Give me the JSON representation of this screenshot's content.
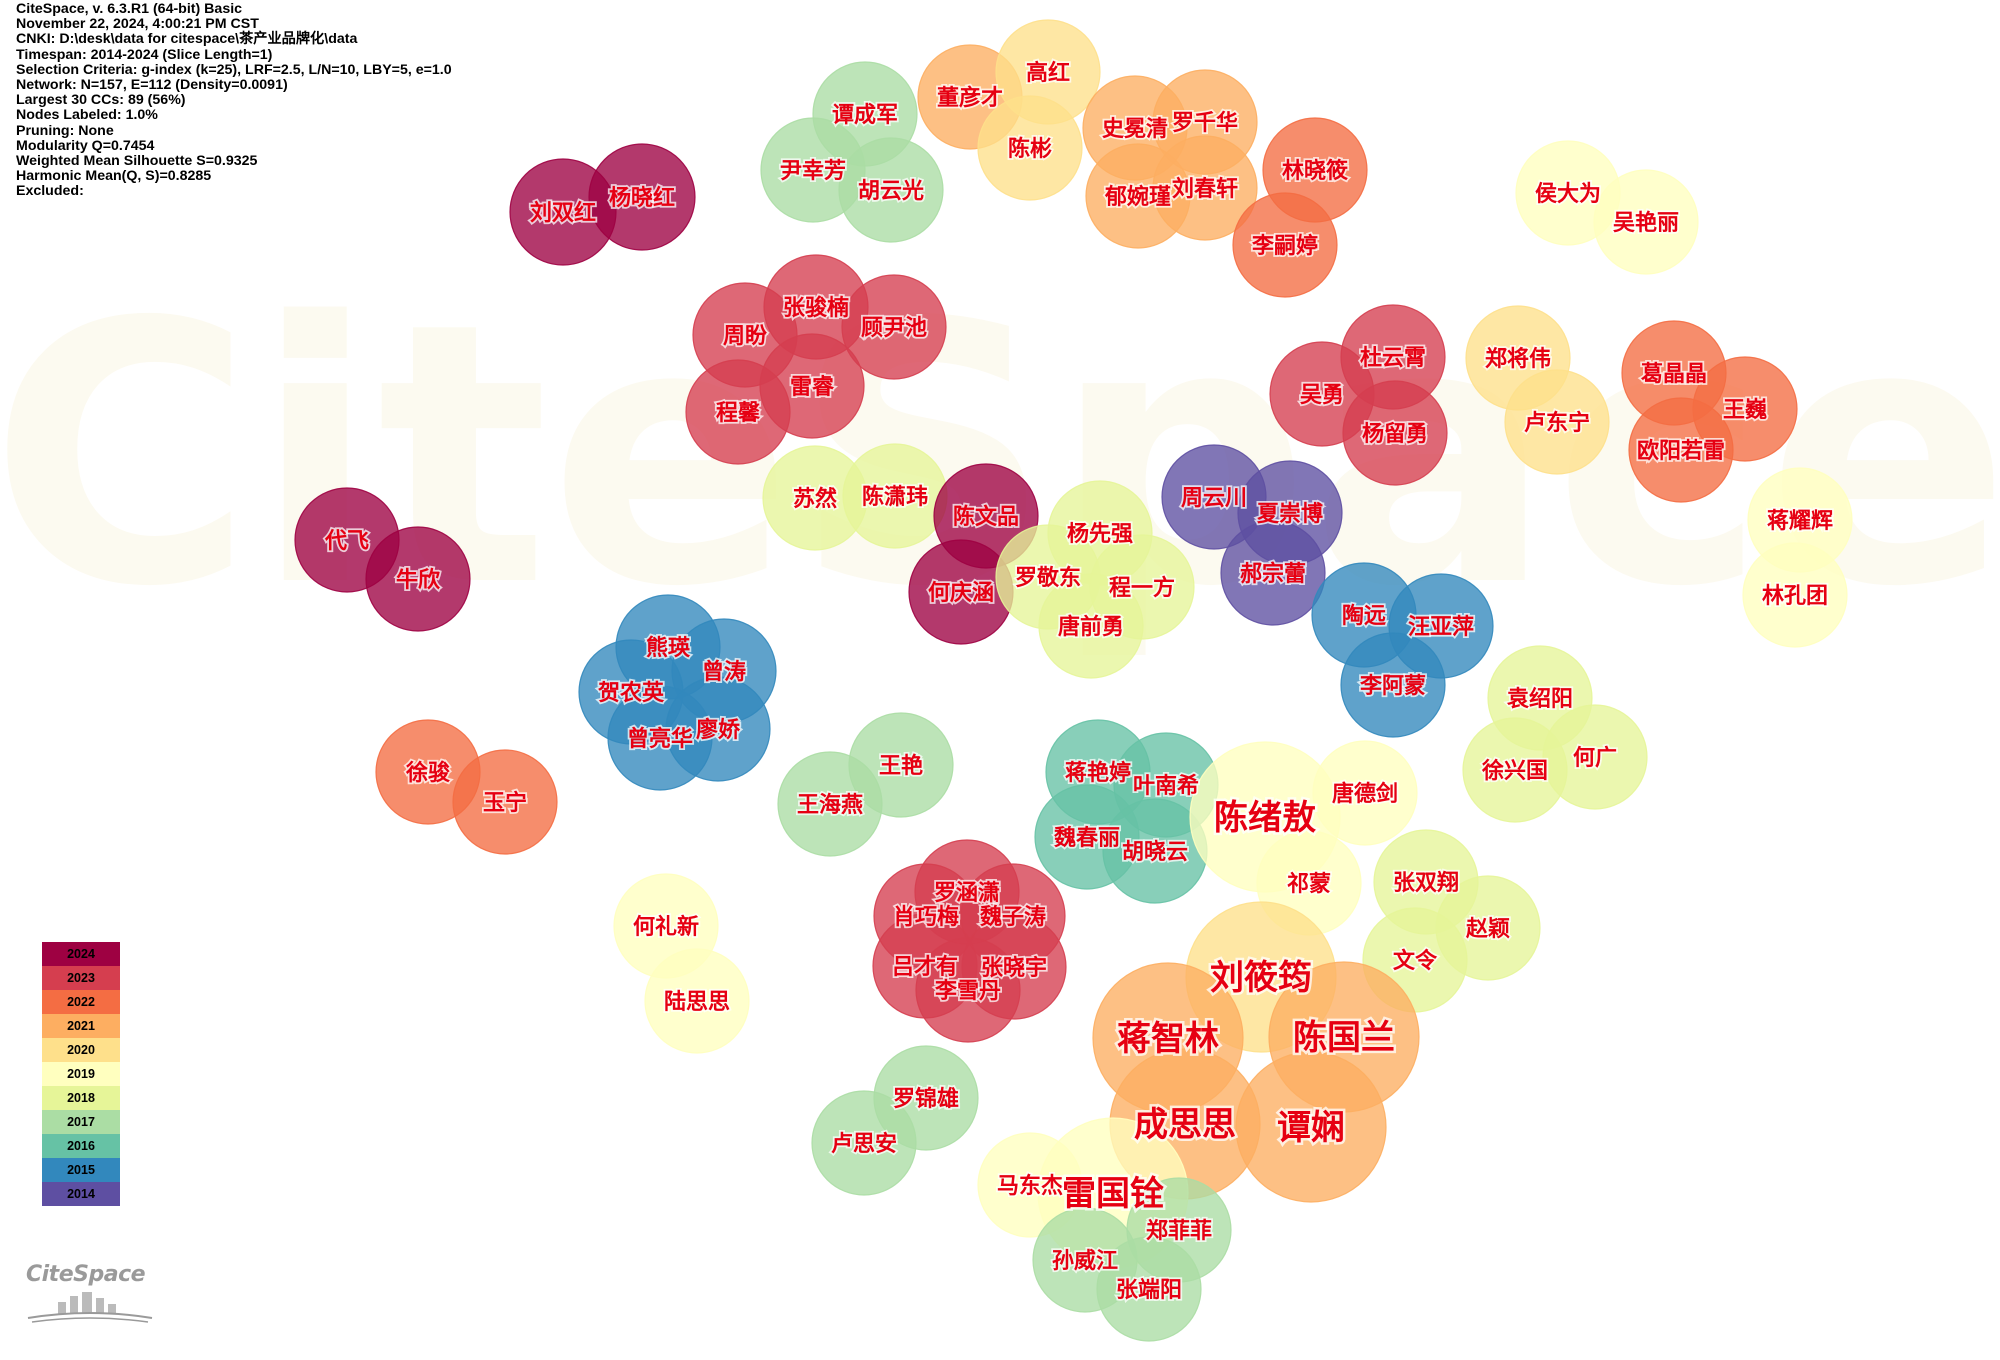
{
  "info_lines": [
    "CiteSpace, v. 6.3.R1 (64-bit) Basic",
    "November 22, 2024, 4:00:21 PM CST",
    "CNKI: D:\\desk\\data for citespace\\茶产业品牌化\\data",
    "Timespan: 2014-2024 (Slice Length=1)",
    "Selection Criteria: g-index (k=25), LRF=2.5, L/N=10, LBY=5, e=1.0",
    "Network: N=157, E=112 (Density=0.0091)",
    "Largest 30 CCs: 89 (56%)",
    "Nodes Labeled: 1.0%",
    "Pruning: None",
    "Modularity Q=0.7454",
    "Weighted Mean Silhouette S=0.9325",
    "Harmonic Mean(Q, S)=0.8285",
    "Excluded:"
  ],
  "watermark": "CiteSpace",
  "logo_text": "CiteSpace",
  "legend": [
    {
      "year": "2024",
      "color": "#9e0142"
    },
    {
      "year": "2023",
      "color": "#d53e4f"
    },
    {
      "year": "2022",
      "color": "#f46d43"
    },
    {
      "year": "2021",
      "color": "#fdae61"
    },
    {
      "year": "2020",
      "color": "#fee08b"
    },
    {
      "year": "2019",
      "color": "#ffffbf"
    },
    {
      "year": "2018",
      "color": "#e6f598"
    },
    {
      "year": "2017",
      "color": "#abdda4"
    },
    {
      "year": "2016",
      "color": "#66c2a5"
    },
    {
      "year": "2015",
      "color": "#3288bd"
    },
    {
      "year": "2014",
      "color": "#5e4fa2"
    }
  ],
  "label_color": "#e60012",
  "nodes": [
    {
      "label": "董彦才",
      "year": 2021
    },
    {
      "label": "高红",
      "year": 2020
    },
    {
      "label": "陈彬",
      "year": 2020
    },
    {
      "label": "史冕清",
      "year": 2021
    },
    {
      "label": "罗千华",
      "year": 2021
    },
    {
      "label": "郁婉瑾",
      "year": 2021
    },
    {
      "label": "刘春轩",
      "year": 2021
    },
    {
      "label": "林晓筱",
      "year": 2022
    },
    {
      "label": "李嗣婷",
      "year": 2022
    },
    {
      "label": "谭成军",
      "year": 2017
    },
    {
      "label": "尹幸芳",
      "year": 2017
    },
    {
      "label": "胡云光",
      "year": 2017
    },
    {
      "label": "刘双红",
      "year": 2024
    },
    {
      "label": "杨晓红",
      "year": 2024
    },
    {
      "label": "侯大为",
      "year": 2019
    },
    {
      "label": "吴艳丽",
      "year": 2019
    },
    {
      "label": "张骏楠",
      "year": 2023
    },
    {
      "label": "周盼",
      "year": 2023
    },
    {
      "label": "顾尹池",
      "year": 2023
    },
    {
      "label": "雷睿",
      "year": 2023
    },
    {
      "label": "程馨",
      "year": 2023
    },
    {
      "label": "杜云霄",
      "year": 2023
    },
    {
      "label": "吴勇",
      "year": 2023
    },
    {
      "label": "杨留勇",
      "year": 2023
    },
    {
      "label": "郑将伟",
      "year": 2020
    },
    {
      "label": "卢东宁",
      "year": 2020
    },
    {
      "label": "葛晶晶",
      "year": 2022
    },
    {
      "label": "王巍",
      "year": 2022
    },
    {
      "label": "欧阳若雷",
      "year": 2022
    },
    {
      "label": "苏然",
      "year": 2018
    },
    {
      "label": "陈潇玮",
      "year": 2018
    },
    {
      "label": "陈文品",
      "year": 2024
    },
    {
      "label": "何庆涵",
      "year": 2024
    },
    {
      "label": "杨先强",
      "year": 2018
    },
    {
      "label": "罗敬东",
      "year": 2018
    },
    {
      "label": "程一方",
      "year": 2018
    },
    {
      "label": "唐前勇",
      "year": 2018
    },
    {
      "label": "周云川",
      "year": 2014
    },
    {
      "label": "夏崇博",
      "year": 2014
    },
    {
      "label": "郝宗蕾",
      "year": 2014
    },
    {
      "label": "蒋耀辉",
      "year": 2019
    },
    {
      "label": "林孔团",
      "year": 2019
    },
    {
      "label": "代飞",
      "year": 2024
    },
    {
      "label": "牛欣",
      "year": 2024
    },
    {
      "label": "陶远",
      "year": 2015
    },
    {
      "label": "汪亚萍",
      "year": 2015
    },
    {
      "label": "李阿蒙",
      "year": 2015
    },
    {
      "label": "熊瑛",
      "year": 2015
    },
    {
      "label": "曾涛",
      "year": 2015
    },
    {
      "label": "贺农英",
      "year": 2015
    },
    {
      "label": "曾亮华",
      "year": 2015
    },
    {
      "label": "廖娇",
      "year": 2015
    },
    {
      "label": "袁绍阳",
      "year": 2018
    },
    {
      "label": "徐兴国",
      "year": 2018
    },
    {
      "label": "何广",
      "year": 2018
    },
    {
      "label": "徐骏",
      "year": 2022
    },
    {
      "label": "玉宁",
      "year": 2022
    },
    {
      "label": "王艳",
      "year": 2017
    },
    {
      "label": "王海燕",
      "year": 2017
    },
    {
      "label": "蒋艳婷",
      "year": 2016
    },
    {
      "label": "叶南希",
      "year": 2016
    },
    {
      "label": "魏春丽",
      "year": 2016
    },
    {
      "label": "胡晓云",
      "year": 2016
    },
    {
      "label": "陈绪敖",
      "year": 2019
    },
    {
      "label": "唐德剑",
      "year": 2019
    },
    {
      "label": "祁蒙",
      "year": 2019
    },
    {
      "label": "张双翔",
      "year": 2018
    },
    {
      "label": "赵颖",
      "year": 2018
    },
    {
      "label": "文令",
      "year": 2018
    },
    {
      "label": "何礼新",
      "year": 2019
    },
    {
      "label": "陆思思",
      "year": 2019
    },
    {
      "label": "罗涵潇",
      "year": 2023
    },
    {
      "label": "肖巧梅",
      "year": 2023
    },
    {
      "label": "魏子涛",
      "year": 2023
    },
    {
      "label": "吕才有",
      "year": 2023
    },
    {
      "label": "张晓宇",
      "year": 2023
    },
    {
      "label": "李雪丹",
      "year": 2023
    },
    {
      "label": "刘筱筠",
      "year": 2020
    },
    {
      "label": "蒋智林",
      "year": 2021
    },
    {
      "label": "陈国兰",
      "year": 2021
    },
    {
      "label": "成思思",
      "year": 2021
    },
    {
      "label": "谭娴",
      "year": 2021
    },
    {
      "label": "罗锦雄",
      "year": 2017
    },
    {
      "label": "卢思安",
      "year": 2017
    },
    {
      "label": "马东杰",
      "year": 2019
    },
    {
      "label": "雷国铨",
      "year": 2019
    },
    {
      "label": "郑菲菲",
      "year": 2017
    },
    {
      "label": "孙威江",
      "year": 2017
    },
    {
      "label": "张端阳",
      "year": 2017
    }
  ]
}
